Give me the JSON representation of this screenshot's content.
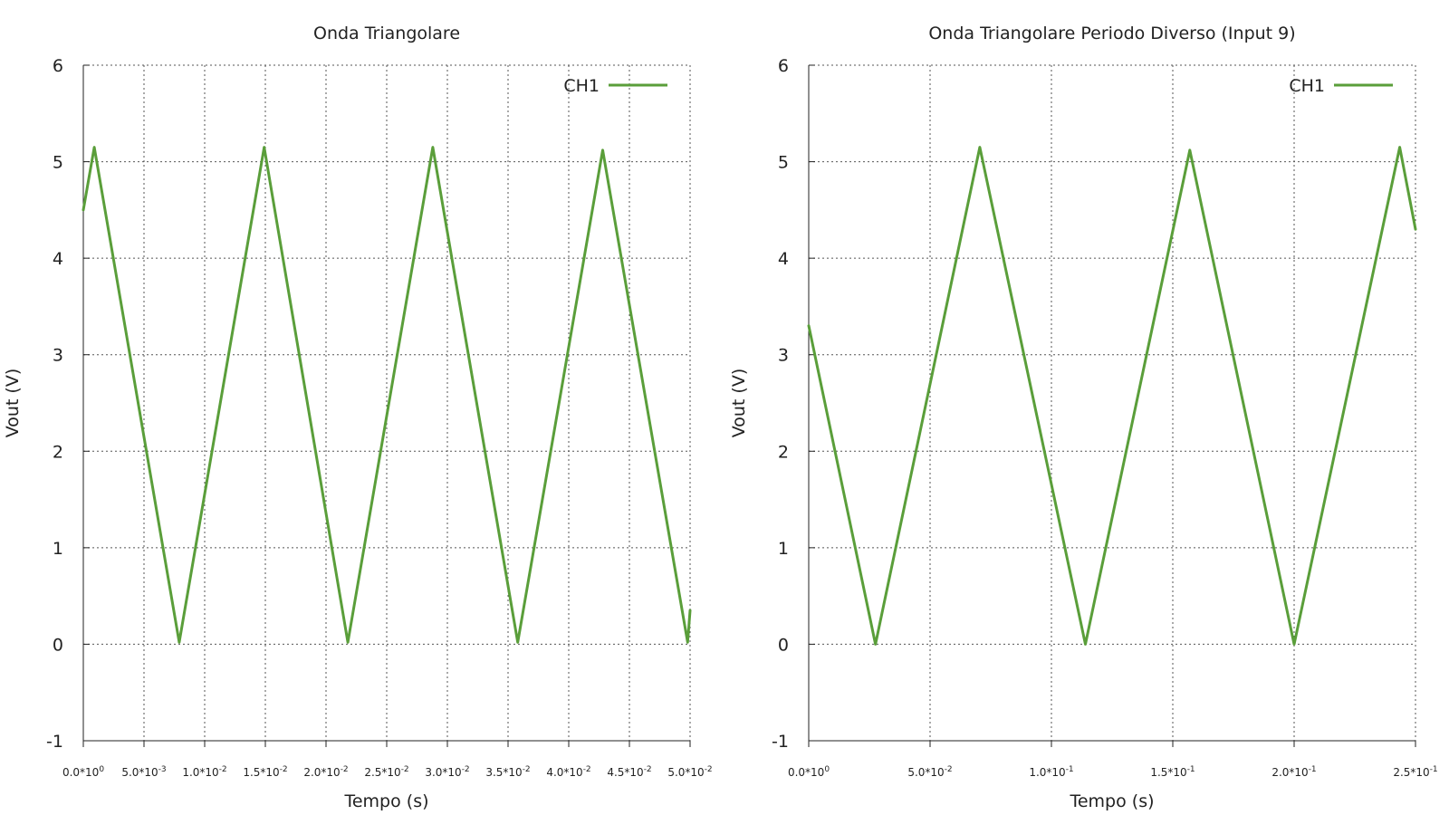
{
  "colors": {
    "series": "#5a9e3a",
    "text": "#222222"
  },
  "chart_data": [
    {
      "type": "line",
      "title": "Onda Triangolare",
      "xlabel": "Tempo (s)",
      "ylabel": "Vout (V)",
      "xlim": [
        0,
        0.05
      ],
      "ylim": [
        -1,
        6
      ],
      "yticks": [
        -1,
        0,
        1,
        2,
        3,
        4,
        5,
        6
      ],
      "xticks": [
        {
          "value": 0,
          "mant": "0.0",
          "exp": "0"
        },
        {
          "value": 0.005,
          "mant": "5.0",
          "exp": "-3"
        },
        {
          "value": 0.01,
          "mant": "1.0",
          "exp": "-2"
        },
        {
          "value": 0.015,
          "mant": "1.5",
          "exp": "-2"
        },
        {
          "value": 0.02,
          "mant": "2.0",
          "exp": "-2"
        },
        {
          "value": 0.025,
          "mant": "2.5",
          "exp": "-2"
        },
        {
          "value": 0.03,
          "mant": "3.0",
          "exp": "-2"
        },
        {
          "value": 0.035,
          "mant": "3.5",
          "exp": "-2"
        },
        {
          "value": 0.04,
          "mant": "4.0",
          "exp": "-2"
        },
        {
          "value": 0.045,
          "mant": "4.5",
          "exp": "-2"
        },
        {
          "value": 0.05,
          "mant": "5.0",
          "exp": "-2"
        }
      ],
      "grid": true,
      "legend_position": "top-right",
      "series": [
        {
          "name": "CH1",
          "x": [
            0,
            0.0009,
            0.0079,
            0.0149,
            0.0218,
            0.0288,
            0.0358,
            0.0428,
            0.0498,
            0.05
          ],
          "y": [
            4.5,
            5.15,
            0.02,
            5.15,
            0.02,
            5.15,
            0.02,
            5.12,
            0.02,
            0.35
          ]
        }
      ]
    },
    {
      "type": "line",
      "title": "Onda Triangolare Periodo Diverso (Input 9)",
      "xlabel": "Tempo (s)",
      "ylabel": "Vout (V)",
      "xlim": [
        0,
        0.25
      ],
      "ylim": [
        -1,
        6
      ],
      "yticks": [
        -1,
        0,
        1,
        2,
        3,
        4,
        5,
        6
      ],
      "xticks": [
        {
          "value": 0,
          "mant": "0.0",
          "exp": "0"
        },
        {
          "value": 0.05,
          "mant": "5.0",
          "exp": "-2"
        },
        {
          "value": 0.1,
          "mant": "1.0",
          "exp": "-1"
        },
        {
          "value": 0.15,
          "mant": "1.5",
          "exp": "-1"
        },
        {
          "value": 0.2,
          "mant": "2.0",
          "exp": "-1"
        },
        {
          "value": 0.25,
          "mant": "2.5",
          "exp": "-1"
        }
      ],
      "grid": true,
      "legend_position": "top-right",
      "series": [
        {
          "name": "CH1",
          "x": [
            0,
            0.0275,
            0.0705,
            0.114,
            0.157,
            0.2,
            0.2435,
            0.25
          ],
          "y": [
            3.3,
            0.0,
            5.15,
            0.0,
            5.12,
            0.0,
            5.15,
            4.3
          ]
        }
      ]
    }
  ]
}
